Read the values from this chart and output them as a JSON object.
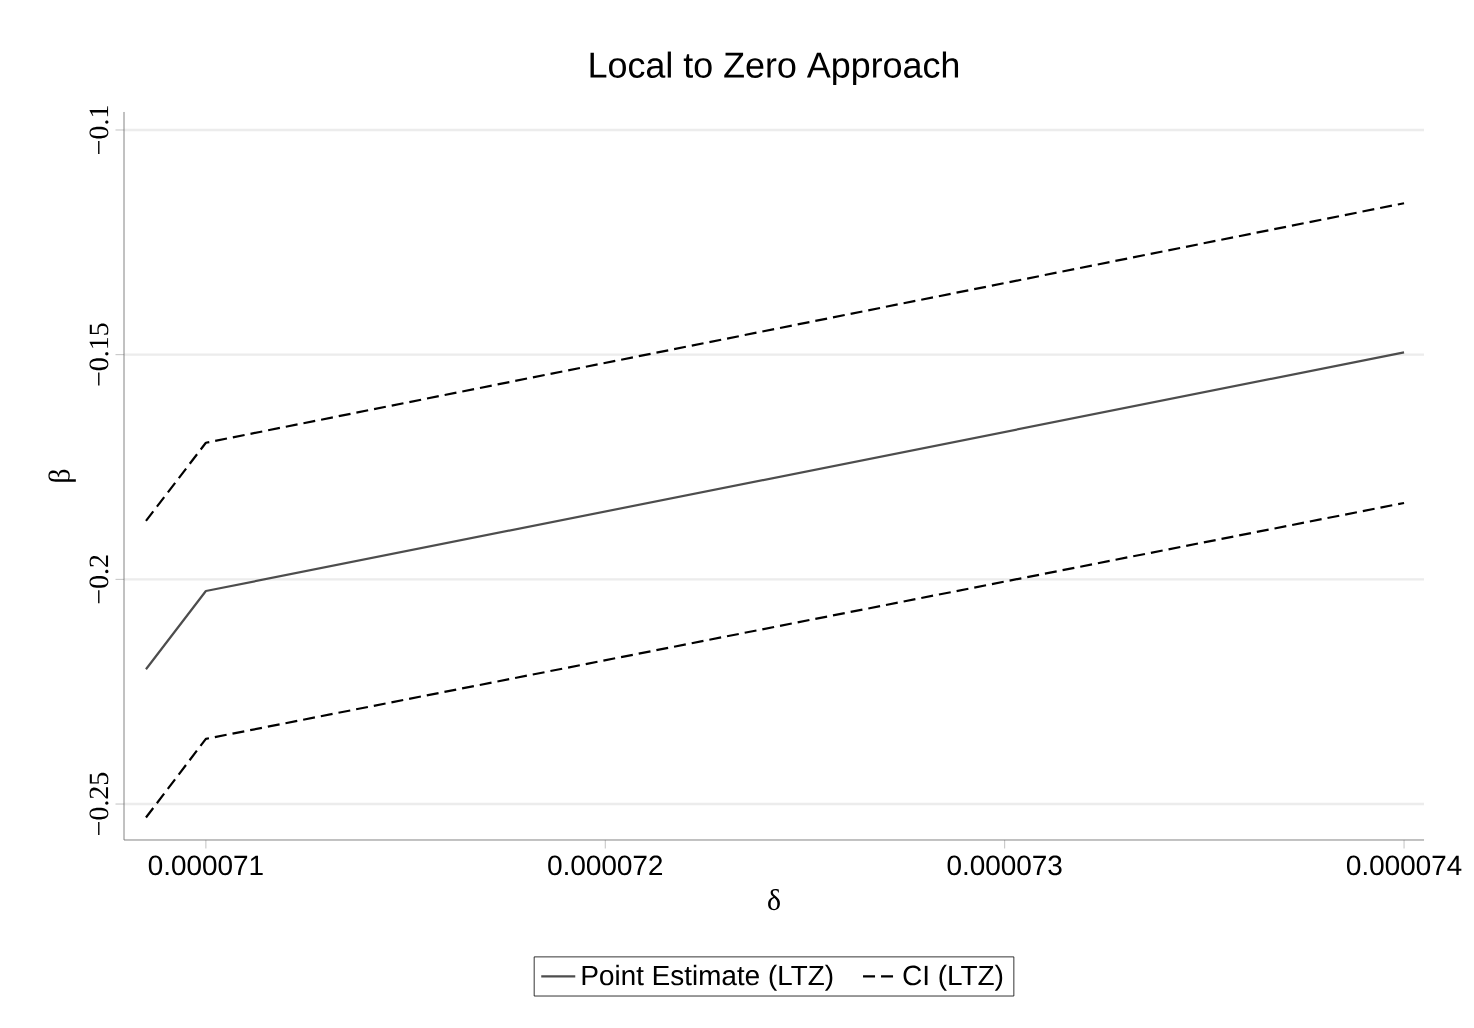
{
  "chart_data": {
    "type": "line",
    "title": "Local to Zero Approach",
    "xlabel": "δ",
    "ylabel": "β",
    "series": [
      {
        "name": "Point Estimate (LTZ)",
        "color": "#4d4d4d",
        "line_style": "solid",
        "x": [
          7.085e-05,
          7.1e-05,
          7.4e-05
        ],
        "values": [
          -0.22,
          -0.2026,
          -0.1495
        ]
      },
      {
        "name": "CI (LTZ)",
        "color": "#000000",
        "line_style": "dashed",
        "x": [
          7.085e-05,
          7.1e-05,
          7.4e-05
        ],
        "values": [
          -0.187,
          -0.1696,
          -0.1163
        ]
      },
      {
        "color": "#000000",
        "line_style": "dashed",
        "x": [
          7.085e-05,
          7.1e-05,
          7.4e-05
        ],
        "values": [
          -0.253,
          -0.2355,
          -0.183
        ]
      }
    ],
    "xlim": [
      7.0795e-05,
      7.405e-05
    ],
    "ylim": [
      -0.258,
      -0.096
    ],
    "xticks": [
      {
        "value": 7.1e-05,
        "label": "0.000071"
      },
      {
        "value": 7.2e-05,
        "label": "0.000072"
      },
      {
        "value": 7.3e-05,
        "label": "0.000073"
      },
      {
        "value": 7.4e-05,
        "label": "0.000074"
      }
    ],
    "yticks": [
      {
        "value": -0.25,
        "label": "−0.25"
      },
      {
        "value": -0.2,
        "label": "−0.2"
      },
      {
        "value": -0.15,
        "label": "−0.15"
      },
      {
        "value": -0.1,
        "label": "−0.1"
      }
    ],
    "grid": "y",
    "legend": "bottom",
    "marker": "none"
  }
}
